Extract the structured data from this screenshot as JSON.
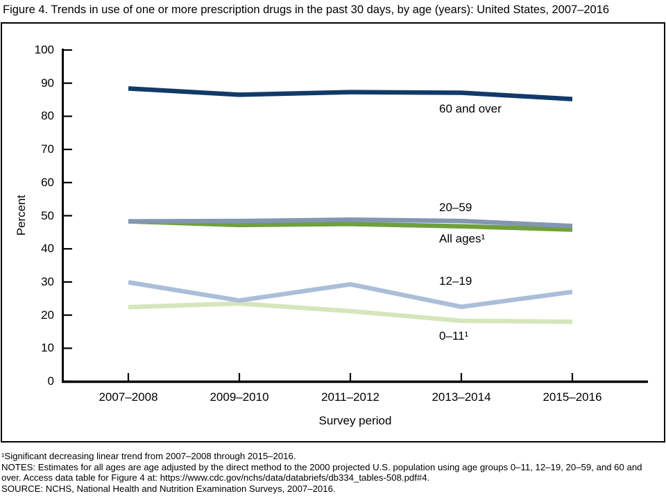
{
  "title": "Figure 4. Trends in use of one or more prescription drugs in the past 30 days, by age (years): United States, 2007–2016",
  "chart_data": {
    "type": "line",
    "title": "Figure 4. Trends in use of one or more prescription drugs in the past 30 days, by age (years): United States, 2007–2016",
    "xlabel": "Survey period",
    "ylabel": "Percent",
    "ylim": [
      0,
      100
    ],
    "ytick_step": 10,
    "yticks": [
      0,
      10,
      20,
      30,
      40,
      50,
      60,
      70,
      80,
      90,
      100
    ],
    "grid": false,
    "legend_position": "inline-right-of-lines",
    "categories": [
      "2007–2008",
      "2009–2010",
      "2011–2012",
      "2013–2014",
      "2015–2016"
    ],
    "series": [
      {
        "name": "60 and over",
        "values": [
          88.4,
          86.5,
          87.3,
          87.1,
          85.2
        ],
        "color": "#123A69"
      },
      {
        "name": "20–59",
        "values": [
          48.3,
          48.4,
          48.8,
          48.4,
          46.9
        ],
        "color": "#8396B2"
      },
      {
        "name": "All ages¹",
        "values": [
          48.3,
          47.2,
          47.5,
          46.8,
          45.8
        ],
        "color": "#6FA03C"
      },
      {
        "name": "12–19",
        "values": [
          29.9,
          24.4,
          29.3,
          22.5,
          27.0
        ],
        "color": "#ABBED9"
      },
      {
        "name": "0–11¹",
        "values": [
          22.4,
          23.5,
          21.2,
          18.3,
          18.0
        ],
        "color": "#D6E6BC"
      }
    ]
  },
  "footnotes": {
    "lines": [
      "¹Significant decreasing linear trend from 2007–2008 through 2015–2016.",
      "NOTES: Estimates for all ages are age adjusted by the direct method to the 2000 projected U.S. population using age groups 0–11, 12–19, 20–59, and 60 and",
      "over. Access data table for Figure 4 at: https://www.cdc.gov/nchs/data/databriefs/db334_tables-508.pdf#4.",
      "SOURCE: NCHS, National Health and Nutrition Examination Surveys, 2007–2016."
    ]
  },
  "colors": {
    "background": "#ffffff",
    "axis": "#000000",
    "border": "#000000",
    "text": "#000000"
  }
}
